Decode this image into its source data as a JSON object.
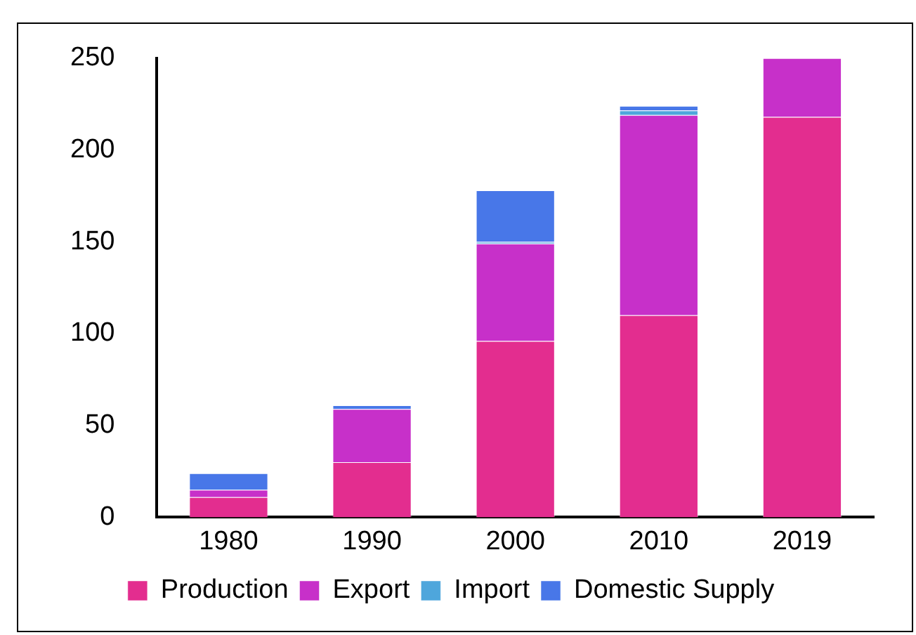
{
  "chart_data": {
    "type": "bar",
    "stacked": true,
    "categories": [
      "1980",
      "1990",
      "2000",
      "2010",
      "2019"
    ],
    "series": [
      {
        "name": "Production",
        "color": "#e32d8f",
        "values": [
          11,
          30,
          96,
          110,
          218
        ]
      },
      {
        "name": "Export",
        "color": "#c730c9",
        "values": [
          4,
          29,
          53,
          109,
          32
        ]
      },
      {
        "name": "Import",
        "color": "#4ea6dc",
        "values": [
          0,
          0,
          1,
          2.5,
          0
        ]
      },
      {
        "name": "Domestic Supply",
        "color": "#4877e8",
        "values": [
          9,
          2,
          28,
          2.5,
          0
        ]
      }
    ],
    "ylim": [
      0,
      250
    ],
    "yticks": [
      0,
      50,
      100,
      150,
      200,
      250
    ],
    "grid": false,
    "legend": "bottom"
  }
}
